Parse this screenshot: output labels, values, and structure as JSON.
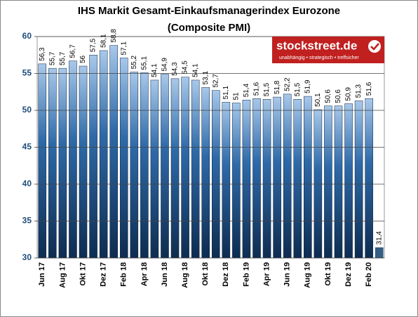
{
  "chart_data": {
    "type": "bar",
    "title": "IHS Markit Gesamt-Einkaufsmanagerindex Eurozone",
    "subtitle": "(Composite PMI)",
    "logo": {
      "name": "stockstreet.de",
      "tagline": "unabhängig • strategisch • treffsicher"
    },
    "categories": [
      "Jun 17",
      null,
      "Aug 17",
      null,
      "Okt 17",
      null,
      "Dez 17",
      null,
      "Feb 18",
      null,
      "Apr 18",
      null,
      "Jun 18",
      null,
      "Aug 18",
      null,
      "Okt 18",
      null,
      "Dez 18",
      null,
      "Feb 19",
      null,
      "Apr 19",
      null,
      "Jun 19",
      null,
      "Aug 19",
      null,
      "Okt 19",
      null,
      "Dez 19",
      null,
      "Feb 20",
      null
    ],
    "values": [
      56.3,
      55.7,
      55.7,
      56.7,
      56,
      57.5,
      58.1,
      58.8,
      57.1,
      55.2,
      55.1,
      54.1,
      54.9,
      54.3,
      54.5,
      54.1,
      53.1,
      52.7,
      51.1,
      51,
      51.4,
      51.6,
      51.5,
      51.8,
      52.2,
      51.5,
      51.9,
      50.1,
      50.6,
      50.6,
      50.9,
      51.3,
      51.6,
      31.4
    ],
    "value_labels": [
      "56,3",
      "55,7",
      "55,7",
      "56,7",
      "56",
      "57,5",
      "58,1",
      "58,8",
      "57,1",
      "55,2",
      "55,1",
      "54,1",
      "54,9",
      "54,3",
      "54,5",
      "54,1",
      "53,1",
      "52,7",
      "51,1",
      "51",
      "51,4",
      "51,6",
      "51,5",
      "51,8",
      "52,2",
      "51,5",
      "51,9",
      "50,1",
      "50,6",
      "50,6",
      "50,9",
      "51,3",
      "51,6",
      "31,4"
    ],
    "color": "#1f4e79",
    "ylim": [
      30,
      60
    ],
    "yticks": [
      30,
      35,
      40,
      45,
      50,
      55,
      60
    ],
    "grid": true
  }
}
